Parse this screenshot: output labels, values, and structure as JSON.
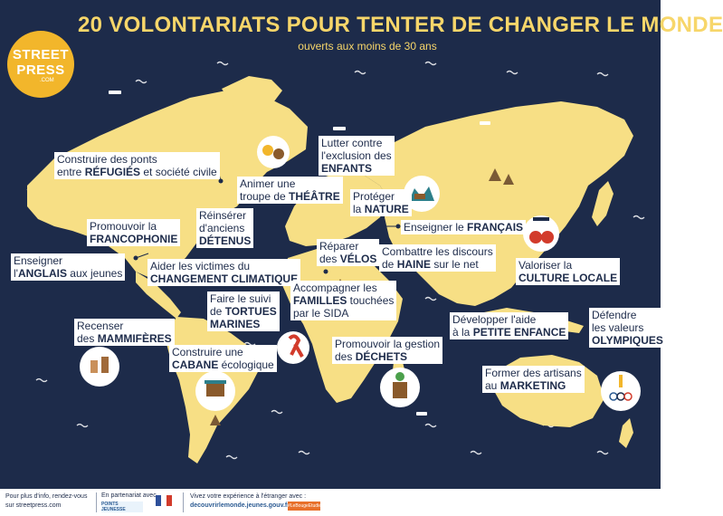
{
  "header": {
    "title": "20 VOLONTARIATS POUR TENTER DE CHANGER LE MONDE",
    "subtitle": "ouverts aux moins de 30 ans"
  },
  "logo": {
    "line1": "STREET",
    "line2": "PRESS",
    "line3": ".COM"
  },
  "labels": {
    "refugies": {
      "l1": "Construire des ponts",
      "l2a": "entre ",
      "l2b": "RÉFUGIÉS",
      "l2c": " et société civile"
    },
    "theatre": {
      "l1": "Animer une",
      "l2a": "troupe de ",
      "l2b": "THÉÂTRE"
    },
    "enfants": {
      "l1": "Lutter contre",
      "l2": "l'exclusion des",
      "l3": "ENFANTS"
    },
    "nature": {
      "l1": "Protéger",
      "l2a": "la ",
      "l2b": "NATURE"
    },
    "detenus": {
      "l1": "Réinsérer",
      "l2": "d'anciens",
      "l3": "DÉTENUS"
    },
    "francophonie": {
      "l1": "Promouvoir la",
      "l2": "FRANCOPHONIE"
    },
    "francais": {
      "l1a": "Enseigner le ",
      "l1b": "FRANÇAIS"
    },
    "velos": {
      "l1": "Réparer",
      "l2a": "des ",
      "l2b": "VÉLOS"
    },
    "haine": {
      "l1": "Combattre les discours",
      "l2a": "de ",
      "l2b": "HAINE",
      "l2c": " sur le net"
    },
    "anglais": {
      "l1": "Enseigner",
      "l2a": "l'",
      "l2b": "ANGLAIS",
      "l2c": " aux jeunes"
    },
    "climat": {
      "l1": "Aider les victimes du",
      "l2": "CHANGEMENT CLIMATIQUE"
    },
    "culture": {
      "l1": "Valoriser la",
      "l2": "CULTURE LOCALE"
    },
    "tortues": {
      "l1": "Faire le suivi",
      "l2a": "de ",
      "l2b": "TORTUES",
      "l3": "MARINES"
    },
    "familles": {
      "l1": "Accompagner les",
      "l2a": "FAMILLES",
      "l2b": " touchées",
      "l3": "par le SIDA"
    },
    "mammiferes": {
      "l1": "Recenser",
      "l2a": "des ",
      "l2b": "MAMMIFÈRES"
    },
    "olympiques": {
      "l1": "Défendre",
      "l2": "les valeurs",
      "l3": "OLYMPIQUES"
    },
    "petite_enfance": {
      "l1": "Développer l'aide",
      "l2a": "à la ",
      "l2b": "PETITE ENFANCE"
    },
    "dechets": {
      "l1": "Promouvoir la gestion",
      "l2a": "des ",
      "l2b": "DÉCHETS"
    },
    "cabane": {
      "l1": "Construire une",
      "l2a": "CABANE",
      "l2b": " écologique"
    },
    "marketing": {
      "l1": "Former des artisans",
      "l2a": "au ",
      "l2b": "MARKETING"
    }
  },
  "footer": {
    "info_l1": "Pour plus d'info, rendez-vous",
    "info_l2": "sur streetpress.com",
    "partner": "En partenariat avec",
    "partner_badge": "POINTS JEUNESSE",
    "cta_l1": "Vivez votre expérience à l'étranger avec :",
    "cta_l2": "decouvrirlemonde.jeunes.gouv.fr",
    "tag": "#LeBougeEtudie"
  },
  "colors": {
    "ocean": "#1d2b4a",
    "land": "#f7df85",
    "accent": "#f2b62b",
    "text": "#1d2b4a"
  }
}
